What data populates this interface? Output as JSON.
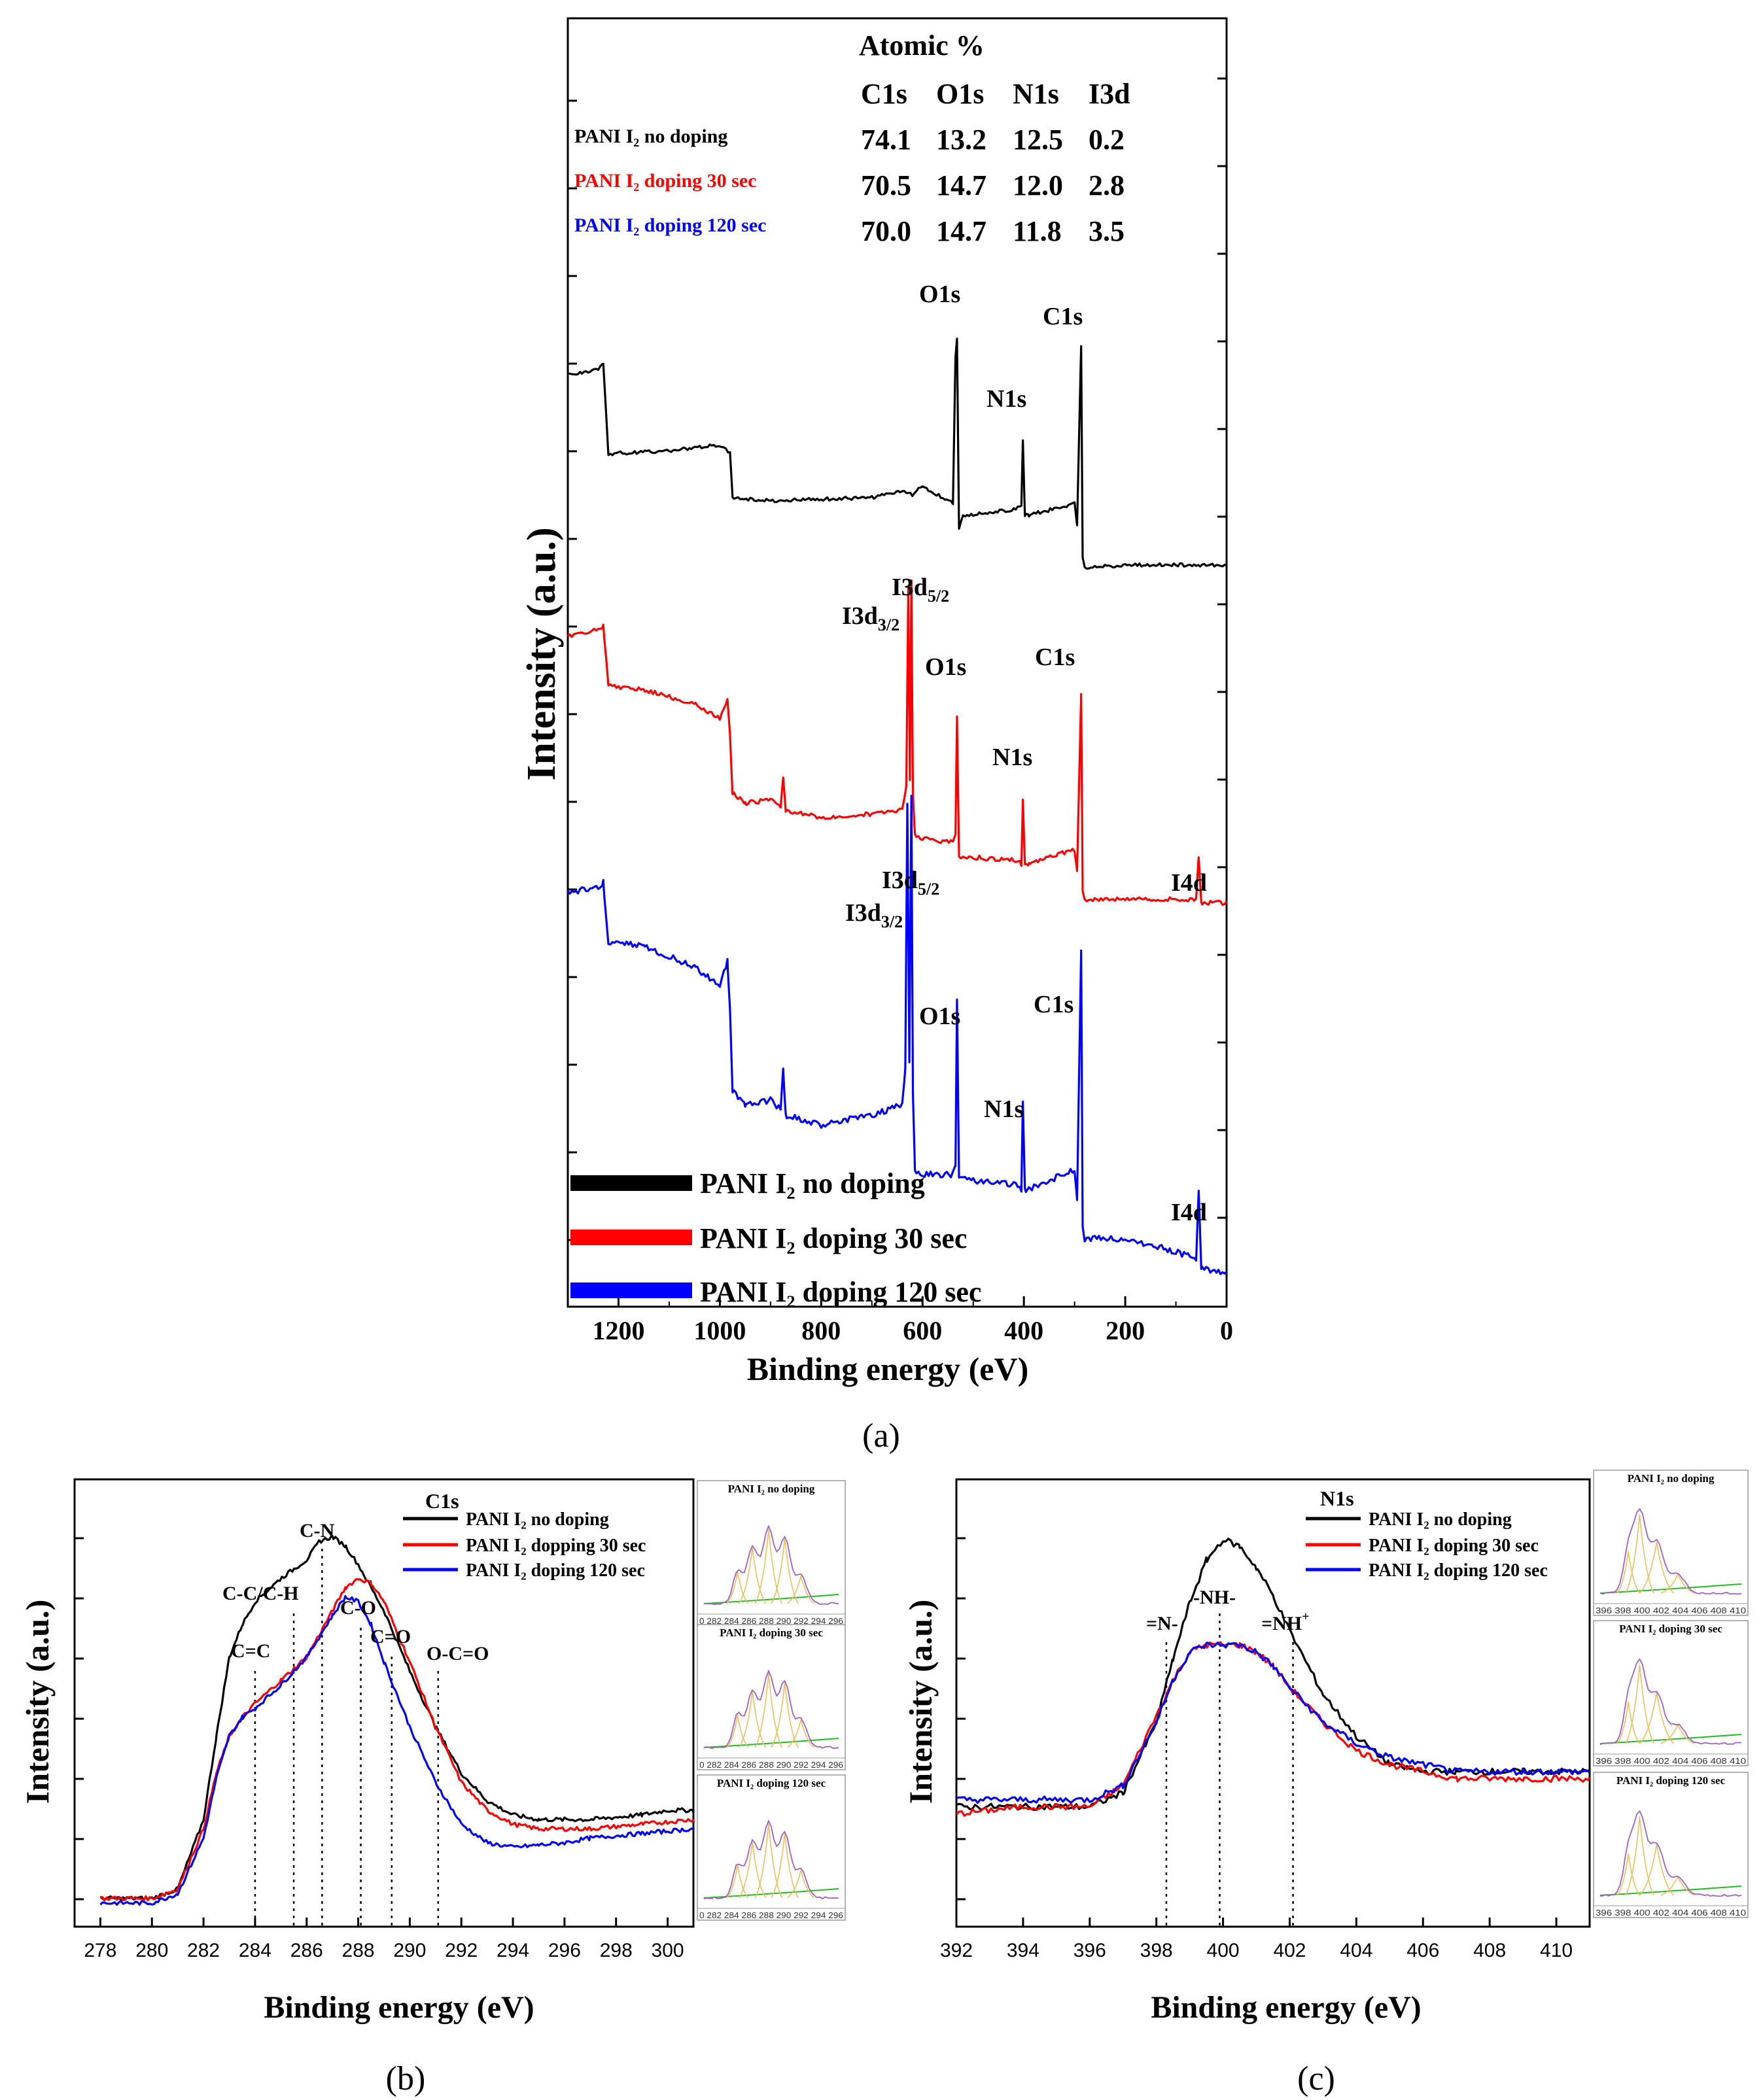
{
  "colors": {
    "no_doping": "#000000",
    "doping_30": "#ff0000",
    "doping_120": "#0000ff",
    "fit_component": "#e8c060",
    "fit_baseline": "#22bb22",
    "fit_envelope": "#a060c0"
  },
  "panel_a": {
    "caption": "(a)",
    "table": {
      "title": "Atomic  %",
      "headers": [
        "C1s",
        "O1s",
        "N1s",
        "I3d"
      ],
      "rows": [
        {
          "label": "PANI I₂ no doping",
          "values": [
            "74.1",
            "13.2",
            "12.5",
            "0.2"
          ]
        },
        {
          "label": "PANI I₂ doping 30 sec",
          "values": [
            "70.5",
            "14.7",
            "12.0",
            "2.8"
          ]
        },
        {
          "label": "PANI I₂ doping 120 sec",
          "values": [
            "70.0",
            "14.7",
            "11.8",
            "3.5"
          ]
        }
      ]
    },
    "legend": [
      "PANI I₂ no doping",
      "PANI I₂ doping 30 sec",
      "PANI I₂ doping 120 sec"
    ],
    "peak_labels": {
      "O1s": "O1s",
      "N1s": "N1s",
      "C1s": "C1s",
      "I4d": "I4d",
      "I3d52": "I3d",
      "I3d52_sub": "5/2",
      "I3d32": "I3d",
      "I3d32_sub": "3/2"
    }
  },
  "panel_b": {
    "caption": "(b)",
    "title": "C1s",
    "legend": [
      "PANI I₂ no doping",
      "PANI I₂ dopping 30 sec",
      "PANI I₂ doping 120 sec"
    ],
    "annotations": [
      "C=C",
      "C-C/C-H",
      "C-N",
      "C-O",
      "C=O",
      "O-C=O"
    ],
    "insets": [
      "PANI I₂ no doping",
      "PANI I₂ doping 30 sec",
      "PANI I₂ doping 120 sec"
    ],
    "inset_ticks": "0 282 284 286 288 290 292 294 296"
  },
  "panel_c": {
    "caption": "(c)",
    "title": "N1s",
    "legend": [
      "PANI I₂ no doping",
      "PANI I₂ doping 30 sec",
      "PANI I₂ doping 120 sec"
    ],
    "annotations": [
      "=N-",
      "-NH-",
      "=NH",
      "+"
    ],
    "insets": [
      "PANI I₂ no doping",
      "PANI I₂ doping 30 sec",
      "PANI I₂ doping 120 sec"
    ],
    "inset_ticks": "396 398 400 402 404 406 408 410"
  },
  "chart_data": [
    {
      "type": "line",
      "panel": "a",
      "xlabel": "Binding energy (eV)",
      "ylabel": "Intensity (a.u.)",
      "xlim": [
        1300,
        0
      ],
      "x_ticks": [
        1200,
        1000,
        800,
        600,
        400,
        200,
        0
      ],
      "x_reversed": true,
      "series_offset": "stacked",
      "series": [
        {
          "name": "PANI I₂ no doping",
          "color": "#000000",
          "x": [
            1300,
            1240,
            1230,
            1220,
            1100,
            1000,
            980,
            975,
            900,
            700,
            640,
            620,
            600,
            540,
            535,
            532,
            528,
            520,
            420,
            405,
            402,
            398,
            390,
            300,
            295,
            287,
            284,
            280,
            200,
            100,
            0
          ],
          "y": [
            82,
            84,
            86,
            55,
            56,
            58,
            55,
            40,
            39,
            40,
            42,
            41,
            44,
            38,
            88,
            94,
            30,
            34,
            36,
            37,
            60,
            34,
            34,
            38,
            30,
            92,
            20,
            16,
            17,
            17,
            17
          ]
        },
        {
          "name": "PANI I₂ doping 30 sec",
          "color": "#ff0000",
          "x": [
            1300,
            1240,
            1230,
            1220,
            1150,
            1050,
            1000,
            985,
            980,
            975,
            950,
            900,
            880,
            875,
            870,
            800,
            700,
            640,
            632,
            628,
            625,
            622,
            619,
            615,
            600,
            540,
            535,
            532,
            528,
            520,
            420,
            405,
            402,
            398,
            390,
            300,
            295,
            287,
            284,
            280,
            200,
            100,
            60,
            55,
            50,
            0
          ],
          "y": [
            86,
            88,
            89,
            72,
            71,
            67,
            63,
            68,
            58,
            42,
            39,
            40,
            38,
            46,
            37,
            35,
            36,
            37,
            44,
            100,
            45,
            102,
            42,
            30,
            29,
            28,
            30,
            64,
            24,
            24,
            23,
            22,
            40,
            22,
            22,
            26,
            20,
            70,
            14,
            12,
            12,
            12,
            12,
            24,
            11,
            11
          ]
        },
        {
          "name": "PANI I₂ doping 120 sec",
          "color": "#0000ff",
          "x": [
            1300,
            1240,
            1230,
            1220,
            1150,
            1050,
            1000,
            985,
            980,
            975,
            950,
            900,
            880,
            875,
            870,
            800,
            700,
            640,
            634,
            630,
            626,
            622,
            619,
            615,
            600,
            540,
            535,
            532,
            528,
            520,
            420,
            405,
            402,
            398,
            390,
            300,
            295,
            287,
            284,
            280,
            200,
            120,
            60,
            55,
            50,
            0
          ],
          "y": [
            82,
            83,
            84,
            72,
            71,
            67,
            63,
            68,
            58,
            42,
            39,
            40,
            38,
            46,
            37,
            35,
            37,
            39,
            46,
            100,
            48,
            102,
            42,
            26,
            25,
            25,
            27,
            60,
            24,
            24,
            23,
            22,
            40,
            22,
            22,
            26,
            20,
            70,
            14,
            12,
            12,
            10,
            8,
            22,
            6,
            5
          ]
        }
      ]
    },
    {
      "type": "line",
      "panel": "b",
      "title": "C1s",
      "xlabel": "Binding energy (eV)",
      "ylabel": "Intensity (a.u.)",
      "xlim": [
        277,
        301
      ],
      "x_ticks": [
        278,
        280,
        282,
        284,
        286,
        288,
        290,
        292,
        294,
        296,
        298,
        300
      ],
      "reference_lines": [
        284.0,
        285.5,
        286.6,
        288.1,
        289.3,
        291.1
      ],
      "series": [
        {
          "name": "PANI I₂ no doping",
          "color": "#000000",
          "x": [
            278,
            280,
            281,
            282,
            282.5,
            283,
            283.5,
            284,
            285,
            286,
            286.5,
            287,
            287.5,
            288,
            289,
            290,
            291,
            292,
            293,
            294,
            295,
            296,
            297,
            298,
            299,
            300,
            301
          ],
          "y": [
            3,
            3,
            5,
            20,
            38,
            55,
            62,
            67,
            72,
            76,
            80,
            81,
            79,
            75,
            65,
            52,
            40,
            30,
            24,
            21,
            20,
            20,
            20,
            20.5,
            21,
            22,
            22
          ]
        },
        {
          "name": "PANI I₂ dopping 30 sec",
          "color": "#ff0000",
          "x": [
            278,
            280,
            281,
            282,
            282.5,
            283,
            283.5,
            284,
            285,
            286,
            287,
            287.5,
            288,
            288.5,
            289,
            290,
            291,
            292,
            293,
            294,
            295,
            296,
            297,
            298,
            299,
            300,
            301
          ],
          "y": [
            3,
            3,
            5,
            18,
            30,
            38,
            42,
            45,
            50,
            55,
            65,
            70,
            72,
            71,
            67,
            54,
            40,
            28,
            22,
            19,
            18,
            18,
            18,
            18.5,
            19,
            19.5,
            20
          ]
        },
        {
          "name": "PANI I₂ doping 120 sec",
          "color": "#0000ff",
          "x": [
            278,
            280,
            281,
            282,
            282.5,
            283,
            283.5,
            284,
            285,
            286,
            287,
            287.5,
            288,
            288.5,
            289,
            290,
            291,
            292,
            293,
            294,
            295,
            296,
            297,
            298,
            299,
            300,
            301
          ],
          "y": [
            2,
            2,
            4,
            16,
            29,
            38,
            42,
            44,
            49,
            55,
            64,
            68,
            67,
            62,
            54,
            40,
            28,
            19,
            15,
            14,
            14.5,
            15,
            16,
            16.5,
            17,
            17.5,
            18
          ]
        }
      ]
    },
    {
      "type": "line",
      "panel": "c",
      "title": "N1s",
      "xlabel": "Binding energy (eV)",
      "ylabel": "Intensity (a.u.)",
      "xlim": [
        392,
        411
      ],
      "x_ticks": [
        392,
        394,
        396,
        398,
        400,
        402,
        404,
        406,
        408,
        410
      ],
      "reference_lines": [
        398.3,
        399.9,
        402.1
      ],
      "series": [
        {
          "name": "PANI I₂ no doping",
          "color": "#000000",
          "x": [
            392,
            394,
            396,
            397,
            398,
            398.5,
            399,
            399.5,
            400,
            400.5,
            401,
            401.5,
            402,
            403,
            404,
            405,
            406,
            407,
            408,
            409,
            410,
            411
          ],
          "y": [
            15,
            15,
            15,
            17,
            27,
            36,
            44,
            50,
            53,
            52,
            49,
            45,
            40,
            31,
            25,
            21,
            20,
            20,
            20,
            20,
            20,
            20
          ]
        },
        {
          "name": "PANI I₂ doping 30 sec",
          "color": "#ff0000",
          "x": [
            392,
            394,
            396,
            397,
            398,
            398.5,
            399,
            399.5,
            400,
            400.5,
            401,
            401.5,
            402,
            403,
            404,
            405,
            406,
            407,
            408,
            409,
            410,
            411
          ],
          "y": [
            14,
            15,
            15,
            18,
            28,
            33,
            37,
            38,
            38,
            38,
            37,
            35,
            32,
            27,
            23,
            21,
            20,
            19,
            19,
            19,
            19,
            19
          ]
        },
        {
          "name": "PANI I₂ doping 120 sec",
          "color": "#0000ff",
          "x": [
            392,
            394,
            396,
            397,
            398,
            398.5,
            399,
            399.5,
            400,
            400.5,
            401,
            401.5,
            402,
            403,
            404,
            405,
            406,
            407,
            408,
            409,
            410,
            411
          ],
          "y": [
            16,
            16,
            16,
            18,
            27,
            33,
            37,
            38,
            38,
            38,
            37,
            35,
            32,
            27,
            24,
            22,
            21,
            20,
            20,
            20,
            20,
            20
          ]
        }
      ]
    }
  ]
}
